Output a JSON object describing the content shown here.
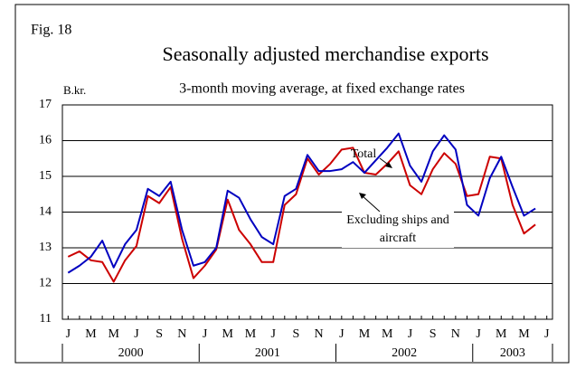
{
  "chart_data": {
    "type": "line",
    "fig_label": "Fig. 18",
    "title": "Seasonally adjusted merchandise exports",
    "subtitle": "3-month moving average, at fixed exchange rates",
    "y_unit": "B.kr.",
    "categories": [
      "J",
      null,
      "M",
      null,
      "M",
      null,
      "J",
      null,
      "S",
      null,
      "N",
      null,
      "J",
      null,
      "M",
      null,
      "M",
      null,
      "J",
      null,
      "S",
      null,
      "N",
      null,
      "J",
      null,
      "M",
      null,
      "M",
      null,
      "J",
      null,
      "S",
      null,
      "N",
      null,
      "J",
      null,
      "M",
      null,
      "M",
      null,
      "J"
    ],
    "years": [
      "2000",
      "2001",
      "2002",
      "2003"
    ],
    "series": [
      {
        "name": "Total",
        "color": "#0000c0",
        "values": [
          12.3,
          12.5,
          12.75,
          13.2,
          12.45,
          13.1,
          13.5,
          14.65,
          14.45,
          14.85,
          13.5,
          12.5,
          12.6,
          13.0,
          14.6,
          14.4,
          13.8,
          13.3,
          13.1,
          14.45,
          14.65,
          15.6,
          15.15,
          15.15,
          15.2,
          15.4,
          15.1,
          15.45,
          15.8,
          16.2,
          15.3,
          14.85,
          15.7,
          16.15,
          15.75,
          14.2,
          13.9,
          14.95,
          15.55,
          14.7,
          13.9,
          14.1,
          null
        ]
      },
      {
        "name": "Excluding ships and aircraft",
        "color": "#cc0000",
        "values": [
          12.75,
          12.9,
          12.65,
          12.6,
          12.05,
          12.65,
          13.05,
          14.45,
          14.25,
          14.7,
          13.25,
          12.15,
          12.5,
          12.95,
          14.35,
          13.5,
          13.1,
          12.6,
          12.6,
          14.2,
          14.5,
          15.5,
          15.05,
          15.35,
          15.75,
          15.8,
          15.1,
          15.05,
          15.35,
          15.7,
          14.75,
          14.5,
          15.2,
          15.65,
          15.35,
          14.45,
          14.5,
          15.55,
          15.5,
          14.2,
          13.4,
          13.65,
          null
        ]
      }
    ],
    "ylim": [
      11,
      17
    ],
    "yticks": [
      11,
      12,
      13,
      14,
      15,
      16,
      17
    ],
    "grid": true
  }
}
